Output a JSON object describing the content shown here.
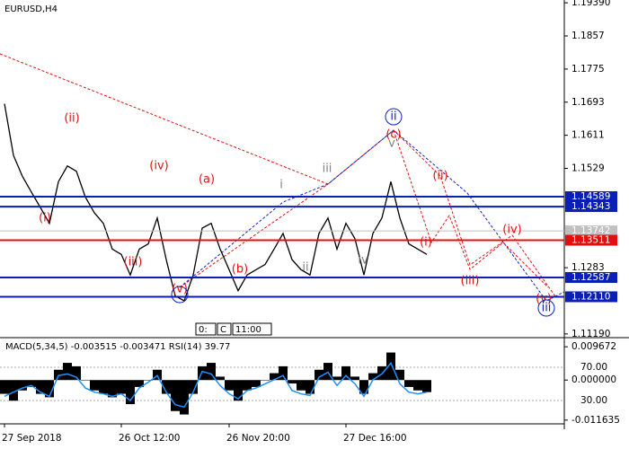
{
  "chart_data": {
    "type": "line",
    "title": "EURUSD,H4",
    "categories": [
      "27 Sep 2018",
      null,
      null,
      null,
      null,
      null,
      null,
      null,
      null,
      null,
      null,
      null,
      null,
      "26 Oct 12:00",
      null,
      null,
      null,
      null,
      null,
      null,
      null,
      null,
      null,
      null,
      null,
      "26 Nov 20:00",
      null,
      null,
      null,
      null,
      null,
      null,
      null,
      null,
      null,
      null,
      null,
      null,
      "27 Dec 16:00",
      null,
      null,
      null,
      null,
      null,
      null,
      null,
      null,
      null
    ],
    "series": [
      {
        "color": "#000000",
        "values": [
          1.1689,
          1.1561,
          1.1509,
          1.147,
          1.1432,
          1.1393,
          1.1496,
          1.1535,
          1.1522,
          1.1458,
          1.1419,
          1.1393,
          1.1329,
          1.1316,
          1.1265,
          1.1329,
          1.1342,
          1.1406,
          1.1303,
          1.1213,
          1.1201,
          1.1265,
          1.1381,
          1.1393,
          1.1329,
          1.1278,
          1.1226,
          1.1265,
          1.1278,
          1.1291,
          1.1329,
          1.1368,
          1.1303,
          1.1278,
          1.1265,
          1.1368,
          1.1406,
          1.1329,
          1.1393,
          1.1355,
          1.1265,
          1.1368,
          1.1406,
          1.1496,
          1.1406,
          1.1342,
          1.1329,
          1.1316
        ]
      }
    ],
    "ylim": [
      1.1112,
      1.1946
    ],
    "yticks": [
      {
        "value": 1.1939,
        "label": "1.19390"
      },
      1.1857,
      1.1775,
      1.1693,
      1.1611,
      1.1529,
      1.1283,
      {
        "value": 1.1119,
        "label": "1.11190"
      }
    ],
    "levels": [
      {
        "price": 1.14589,
        "color": "#0a1fb4"
      },
      {
        "price": 1.14343,
        "color": "#0a1fb4"
      },
      {
        "price": 1.13742,
        "color": "#c0c0c0"
      },
      {
        "price": 1.13511,
        "color": "#e01010"
      },
      {
        "price": 1.12587,
        "color": "#0a1fb4"
      },
      {
        "price": {
          "value": 1.1211,
          "label": "1.12110"
        },
        "color": "#0a1fb4"
      }
    ],
    "annotations": [
      {
        "text": "(ii)",
        "color": "#e01010"
      },
      {
        "text": "(i)",
        "color": "#e01010"
      },
      {
        "text": "(iii)",
        "color": "#e01010"
      },
      {
        "text": "(iv)",
        "color": "#e01010"
      },
      {
        "text": "(a)",
        "color": "#e01010"
      },
      {
        "text": "(b)",
        "color": "#e01010"
      },
      {
        "text": "(v)",
        "color": "#e01010"
      },
      {
        "text": "(c)",
        "color": "#e01010"
      },
      {
        "text": "(ii)",
        "color": "#e01010"
      },
      {
        "text": "(i)",
        "color": "#e01010"
      },
      {
        "text": "(iii)",
        "color": "#e01010"
      },
      {
        "text": "(iv)",
        "color": "#e01010"
      },
      {
        "text": "(v)",
        "color": "#e01010"
      },
      {
        "text": "i",
        "color": "#808080"
      },
      {
        "text": "iii",
        "color": "#808080"
      },
      {
        "text": "ii",
        "color": "#808080"
      },
      {
        "text": "iv",
        "color": "#808080"
      },
      {
        "text": "v",
        "color": "#808080"
      },
      {
        "text": "ii",
        "color": "#1020c0"
      },
      {
        "text": "iii",
        "color": "#1020c0"
      }
    ],
    "toolbar": [
      "0:",
      "C",
      "11:00"
    ],
    "indicator": {
      "type": "bar",
      "title": "MACD(5,34,5) -0.003515 -0.003471 RSI(14) 39.77",
      "series": [
        {
          "color": "#000000",
          "values": [
            -0.004,
            -0.006,
            -0.003,
            -0.002,
            -0.004,
            -0.005,
            0.003,
            0.005,
            0.004,
            0.0,
            -0.003,
            -0.004,
            -0.005,
            -0.004,
            -0.007,
            -0.002,
            0.0,
            0.003,
            -0.004,
            -0.009,
            -0.01,
            -0.004,
            0.004,
            0.005,
            0.001,
            -0.003,
            -0.006,
            -0.003,
            -0.002,
            0.0,
            0.002,
            0.004,
            -0.001,
            -0.003,
            -0.004,
            0.003,
            0.005,
            0.001,
            0.004,
            0.001,
            -0.004,
            0.002,
            0.004,
            0.008,
            0.003,
            -0.002,
            -0.003,
            -0.0035
          ]
        },
        {
          "color": "#1e90ff",
          "axis": "y2",
          "values": [
            35,
            40,
            45,
            48,
            40,
            35,
            60,
            62,
            58,
            45,
            40,
            38,
            35,
            38,
            30,
            45,
            52,
            60,
            40,
            25,
            22,
            40,
            65,
            62,
            48,
            38,
            32,
            42,
            45,
            50,
            55,
            60,
            42,
            38,
            36,
            58,
            64,
            48,
            60,
            50,
            35,
            55,
            62,
            75,
            50,
            40,
            38,
            40
          ]
        }
      ],
      "ylim": [
        -0.0122,
        0.0118
      ],
      "yticks": [
        0.009672,
        {
          "value": 0,
          "label": "0.000000"
        },
        -0.011635
      ],
      "y2lim": [
        4,
        103.5
      ],
      "y2ticks": [
        {
          "value": 70,
          "label": "70.00"
        },
        {
          "value": 30,
          "label": "30.00"
        }
      ]
    }
  }
}
